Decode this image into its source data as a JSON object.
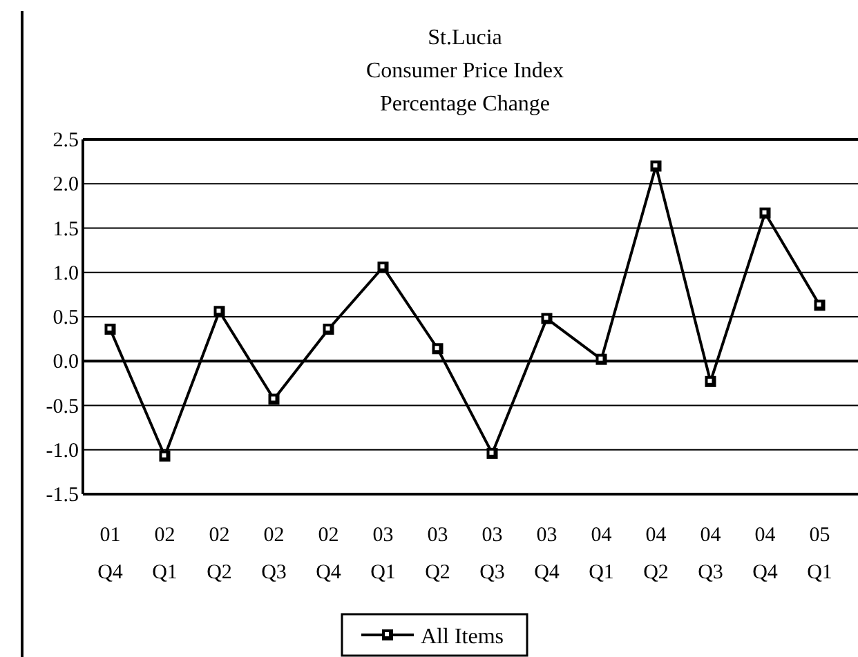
{
  "chart_data": {
    "type": "line",
    "title": "St.Lucia\nConsumer Price Index\nPercentage Change",
    "categories": [
      "01 Q4",
      "02 Q1",
      "02 Q2",
      "02 Q3",
      "02 Q4",
      "03 Q1",
      "03 Q2",
      "03 Q3",
      "03 Q4",
      "04 Q1",
      "04 Q2",
      "04 Q3",
      "04 Q4",
      "05 Q1"
    ],
    "series": [
      {
        "name": "All Items",
        "color": "#000000",
        "values": [
          0.36,
          -1.07,
          0.56,
          -0.43,
          0.36,
          1.06,
          0.14,
          -1.04,
          0.48,
          0.02,
          2.2,
          -0.23,
          1.67,
          0.63
        ]
      }
    ],
    "ylim": [
      -1.5,
      2.5
    ],
    "yticks": [
      {
        "value": 2.5,
        "label": "2.5"
      },
      {
        "value": 2,
        "label": "2.0"
      },
      {
        "value": 1.5,
        "label": "1.5"
      },
      {
        "value": 1,
        "label": "1.0"
      },
      {
        "value": 0.5,
        "label": "0.5"
      },
      {
        "value": 0,
        "label": "0.0"
      },
      {
        "value": -0.5,
        "label": "-0.5"
      },
      {
        "value": -1,
        "label": "-1.0"
      },
      {
        "value": -1.5,
        "label": "-1.5"
      }
    ],
    "grid": "y",
    "legend": "bottom",
    "marker": "square",
    "line_style": "solid"
  }
}
